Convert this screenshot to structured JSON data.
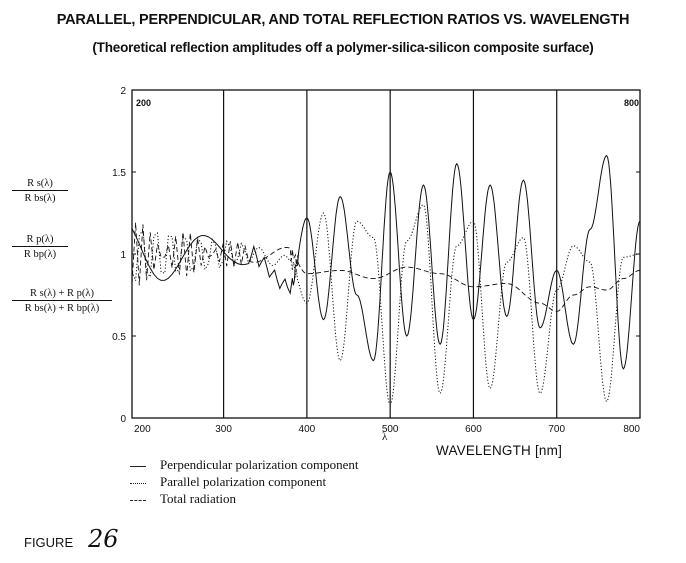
{
  "title": "PARALLEL, PERPENDICULAR, AND TOTAL REFLECTION RATIOS VS. WAVELENGTH",
  "subtitle": "(Theoretical reflection amplitudes off a polymer-silica-silicon composite surface)",
  "y_labels": [
    {
      "num": "R s(λ)",
      "den": "R bs(λ)"
    },
    {
      "num": "R p(λ)",
      "den": "R bp(λ)"
    },
    {
      "num": "R s(λ) + R p(λ)",
      "den": "R bs(λ) + R bp(λ)"
    }
  ],
  "x_symbol": "λ",
  "corner_labels": {
    "top_left": "200",
    "top_right": "800"
  },
  "legend": [
    "Perpendicular polarization component",
    "Parallel polarization component",
    "Total radiation"
  ],
  "figure_label": "FIGURE",
  "figure_number": "26",
  "colors": {
    "ink": "#111111",
    "background": "#ffffff"
  },
  "chart_data": {
    "type": "line",
    "xlabel": "WAVELENGTH [nm]",
    "xlim": [
      190,
      800
    ],
    "ylim": [
      0,
      2
    ],
    "x_ticks": [
      200,
      300,
      400,
      500,
      600,
      700,
      800
    ],
    "y_ticks": [
      0,
      0.5,
      1,
      1.5,
      2
    ],
    "vertical_gridlines_at": [
      300,
      400,
      500,
      600,
      700
    ],
    "series": [
      {
        "name": "Perpendicular polarization component",
        "style": "solid",
        "x": [
          190,
          260,
          330,
          380,
          400,
          420,
          440,
          460,
          480,
          500,
          520,
          540,
          560,
          580,
          600,
          620,
          640,
          660,
          680,
          700,
          720,
          740,
          760,
          780,
          800
        ],
        "values": [
          1.0,
          1.0,
          1.0,
          0.8,
          1.22,
          0.6,
          1.35,
          0.75,
          0.35,
          1.5,
          0.5,
          1.42,
          0.45,
          1.55,
          0.6,
          1.42,
          0.62,
          1.45,
          0.55,
          0.9,
          0.45,
          1.15,
          1.6,
          0.3,
          1.2
        ]
      },
      {
        "name": "Parallel polarization component",
        "style": "dotted",
        "x": [
          190,
          260,
          330,
          380,
          400,
          420,
          440,
          460,
          480,
          500,
          520,
          540,
          560,
          580,
          600,
          620,
          640,
          660,
          680,
          700,
          720,
          740,
          760,
          780,
          800
        ],
        "values": [
          1.0,
          1.0,
          1.0,
          0.95,
          0.7,
          1.25,
          0.35,
          1.2,
          1.1,
          0.08,
          1.08,
          1.3,
          0.15,
          1.05,
          1.2,
          0.18,
          0.95,
          1.1,
          0.15,
          0.78,
          1.05,
          0.95,
          0.1,
          0.98,
          1.0
        ]
      },
      {
        "name": "Total radiation",
        "style": "dashed",
        "x": [
          190,
          260,
          330,
          380,
          400,
          440,
          480,
          520,
          560,
          600,
          640,
          680,
          700,
          720,
          740,
          760,
          780,
          800
        ],
        "values": [
          1.0,
          1.0,
          1.0,
          1.0,
          0.88,
          0.9,
          0.85,
          0.92,
          0.88,
          0.8,
          0.82,
          0.7,
          0.65,
          0.75,
          0.8,
          0.78,
          0.85,
          0.9
        ]
      }
    ]
  }
}
